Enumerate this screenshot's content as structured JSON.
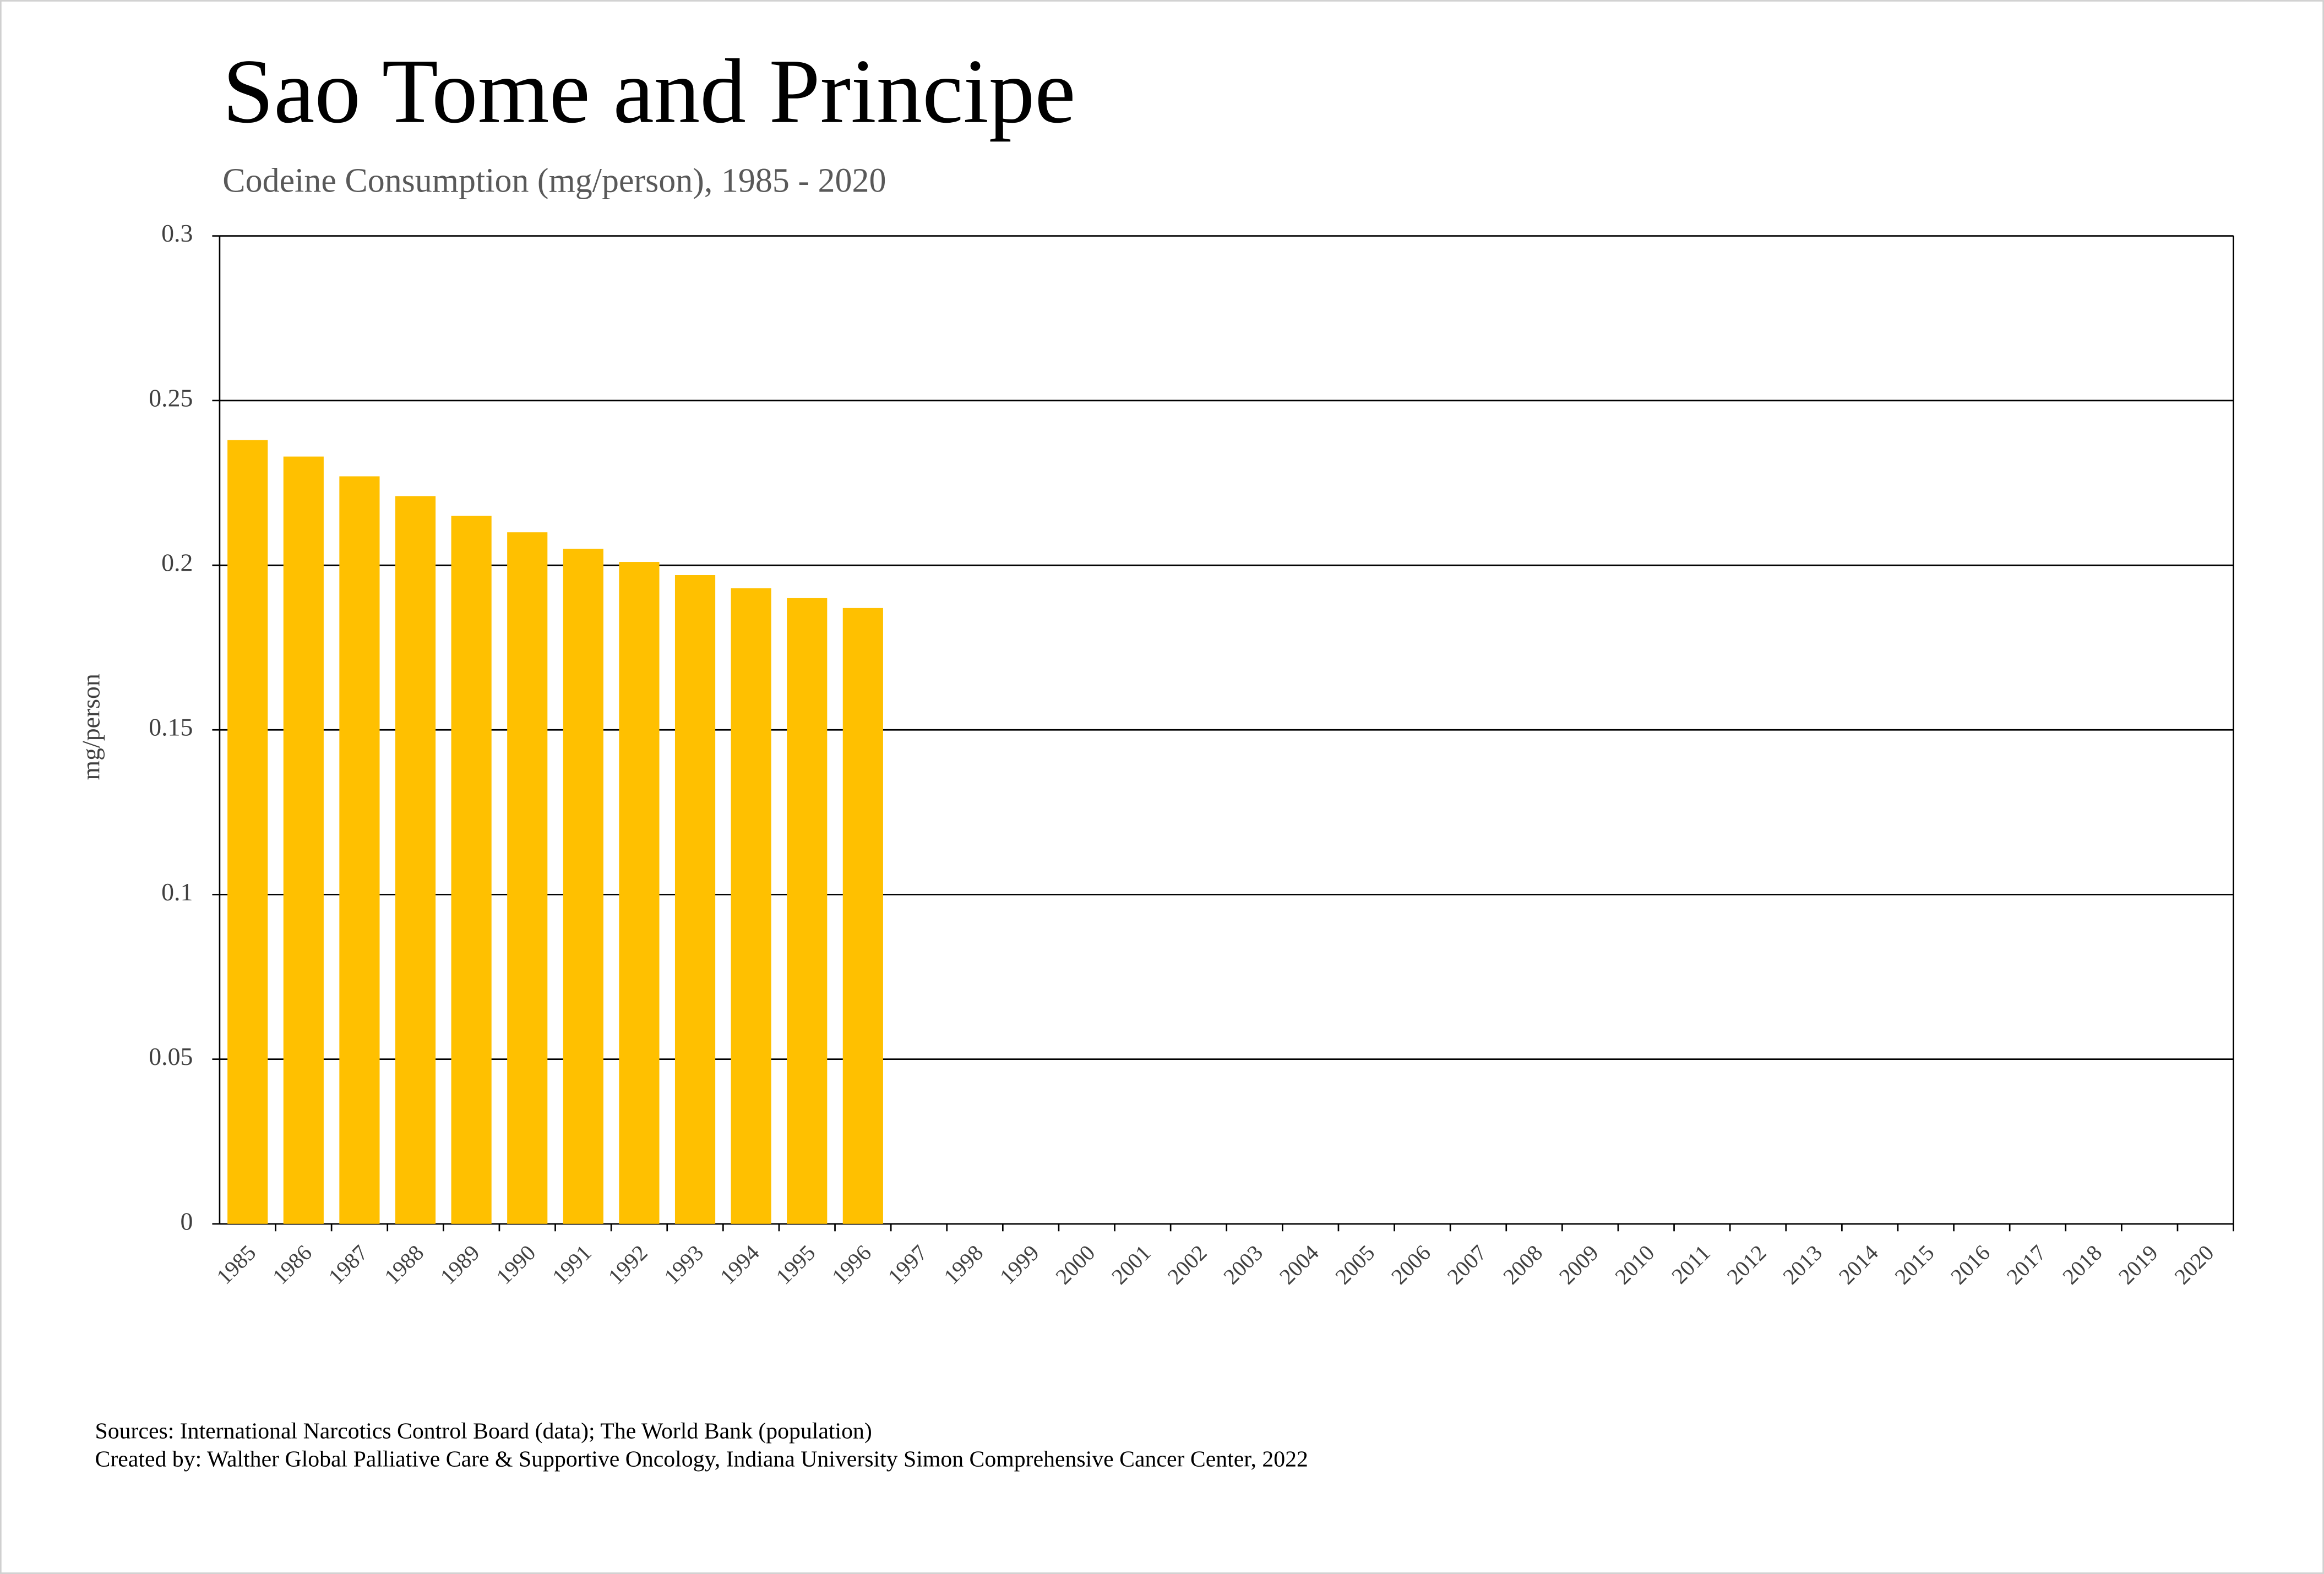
{
  "chart_data": {
    "type": "bar",
    "title": "Sao Tome and Principe",
    "subtitle": "Codeine Consumption (mg/person), 1985 - 2020",
    "y_label": "mg/person",
    "categories": [
      "1985",
      "1986",
      "1987",
      "1988",
      "1989",
      "1990",
      "1991",
      "1992",
      "1993",
      "1994",
      "1995",
      "1996",
      "1997",
      "1998",
      "1999",
      "2000",
      "2001",
      "2002",
      "2003",
      "2004",
      "2005",
      "2006",
      "2007",
      "2008",
      "2009",
      "2010",
      "2011",
      "2012",
      "2013",
      "2014",
      "2015",
      "2016",
      "2017",
      "2018",
      "2019",
      "2020"
    ],
    "values": [
      0.238,
      0.233,
      0.227,
      0.221,
      0.215,
      0.21,
      0.205,
      0.201,
      0.197,
      0.193,
      0.19,
      0.187,
      null,
      null,
      null,
      null,
      null,
      null,
      null,
      null,
      null,
      null,
      null,
      null,
      null,
      null,
      null,
      null,
      null,
      null,
      null,
      null,
      null,
      null,
      null,
      null
    ],
    "color": "#ffc000",
    "ylim": [
      0,
      0.3
    ],
    "yticks": [
      0,
      0.05,
      0.1,
      0.15,
      0.2,
      0.25,
      0.3
    ],
    "grid": true,
    "sources": "Sources: International Narcotics Control Board (data); The World Bank (population)",
    "credit": "Created by: Walther Global Palliative Care & Supportive Oncology, Indiana University Simon Comprehensive Cancer Center, 2022"
  }
}
